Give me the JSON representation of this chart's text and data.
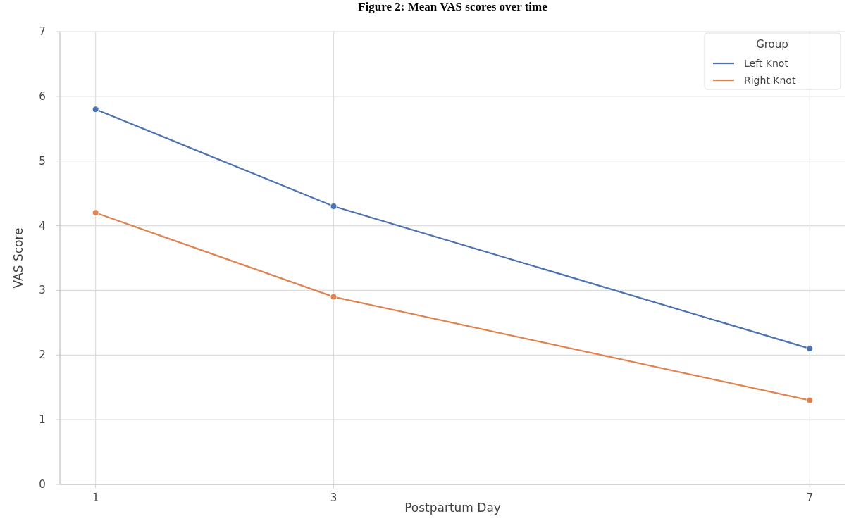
{
  "chart_data": {
    "type": "line",
    "title": "Figure 2: Mean VAS scores over time",
    "xlabel": "Postpartum Day",
    "ylabel": "VAS Score",
    "legend_title": "Group",
    "x": [
      1,
      3,
      7
    ],
    "series": [
      {
        "name": "Left Knot",
        "color": "#4c72b0",
        "values": [
          5.8,
          4.3,
          2.1
        ]
      },
      {
        "name": "Right Knot",
        "color": "#dd8452",
        "values": [
          4.2,
          2.9,
          1.3
        ]
      }
    ],
    "xlim": [
      0.7,
      7.3
    ],
    "xticks": [
      1,
      3,
      7
    ],
    "ylim": [
      0,
      7
    ],
    "yticks": [
      0,
      1,
      2,
      3,
      4,
      5,
      6,
      7
    ],
    "grid": true,
    "legend": "top right",
    "marker": "circle",
    "line_style": "solid"
  }
}
